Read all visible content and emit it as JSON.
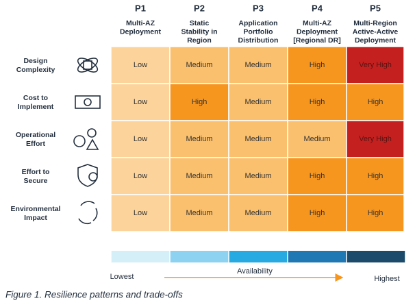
{
  "columns": [
    {
      "id": "P1",
      "name": [
        "Multi-AZ",
        "Deployment"
      ]
    },
    {
      "id": "P2",
      "name": [
        "Static",
        "Stability in",
        "Region"
      ]
    },
    {
      "id": "P3",
      "name": [
        "Application",
        "Portfolio",
        "Distribution"
      ]
    },
    {
      "id": "P4",
      "name": [
        "Multi-AZ",
        "Deployment",
        "[Regional DR]"
      ]
    },
    {
      "id": "P5",
      "name": [
        "Multi-Region",
        "Active-Active",
        "Deployment"
      ]
    }
  ],
  "rows": [
    {
      "label": [
        "Design",
        "Complexity"
      ],
      "cells": [
        "Low",
        "Medium",
        "Medium",
        "High",
        "Very High"
      ]
    },
    {
      "label": [
        "Cost to",
        "Implement"
      ],
      "cells": [
        "Low",
        "High",
        "Medium",
        "High",
        "High"
      ]
    },
    {
      "label": [
        "Operational",
        "Effort"
      ],
      "cells": [
        "Low",
        "Medium",
        "Medium",
        "Medium",
        "Very High"
      ]
    },
    {
      "label": [
        "Effort to",
        "Secure"
      ],
      "cells": [
        "Low",
        "Medium",
        "Medium",
        "High",
        "High"
      ]
    },
    {
      "label": [
        "Environmental",
        "Impact"
      ],
      "cells": [
        "Low",
        "Medium",
        "Medium",
        "High",
        "High"
      ]
    }
  ],
  "level_colors": {
    "Low": "#fcd49b",
    "Medium": "#fbc06e",
    "High": "#f7961f",
    "Very High": "#c4201f"
  },
  "availability": {
    "label": "Availability",
    "low": "Lowest",
    "high": "Highest",
    "colors": [
      "#d5eff9",
      "#8ed2f1",
      "#27aae1",
      "#1f78b4",
      "#1c4a6a"
    ]
  },
  "caption": "Figure 1. Resilience patterns and trade-offs"
}
